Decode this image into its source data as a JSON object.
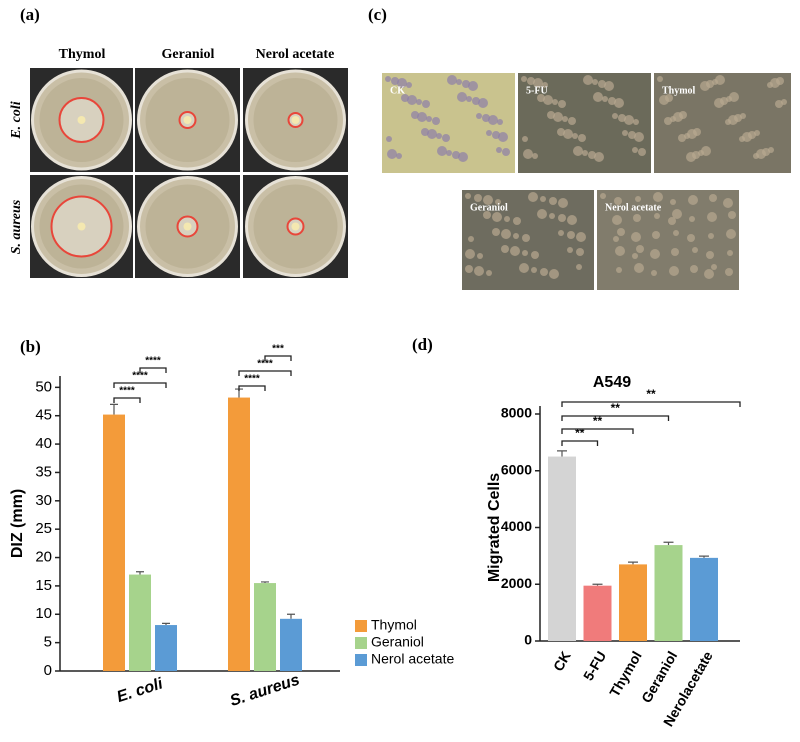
{
  "panel_labels": [
    "(a)",
    "(b)",
    "(c)",
    "(d)"
  ],
  "panel_a": {
    "columns": [
      "Thymol",
      "Geraniol",
      "Nerol acetate"
    ],
    "rows": [
      "E. coli",
      "S. aureus"
    ]
  },
  "panel_c": {
    "images": [
      "CK",
      "5-FU",
      "Thymol",
      "Geraniol",
      "Nerol acetate"
    ]
  },
  "chart_data": [
    {
      "type": "bar",
      "ylabel": "DIZ (mm)",
      "categories": [
        "E. coli",
        "S. aureus"
      ],
      "series": [
        {
          "name": "Thymol",
          "color": "#f39b3a",
          "values": [
            45.2,
            48.2
          ],
          "errors": [
            1.8,
            1.5
          ]
        },
        {
          "name": "Geraniol",
          "color": "#a6d38c",
          "values": [
            17.0,
            15.5
          ],
          "errors": [
            0.5,
            0.2
          ]
        },
        {
          "name": "Nerol acetate",
          "color": "#5b9bd5",
          "values": [
            8.1,
            9.2
          ],
          "errors": [
            0.3,
            0.8
          ]
        }
      ],
      "ylim": [
        0,
        52
      ],
      "yticks": [
        0,
        5,
        10,
        15,
        20,
        25,
        30,
        35,
        40,
        45,
        50
      ],
      "legend": "right",
      "significance": [
        "****",
        "****",
        "****",
        "****",
        "****",
        "***"
      ]
    },
    {
      "type": "bar",
      "title": "A549",
      "ylabel": "Migrated Cells",
      "categories": [
        "CK",
        "5-FU",
        "Thymol",
        "Geraniol",
        "Nerolacetate"
      ],
      "values": [
        6500,
        1950,
        2700,
        3380,
        2930
      ],
      "errors": [
        200,
        50,
        80,
        100,
        60
      ],
      "colors": [
        "#d4d4d4",
        "#f07b7b",
        "#f39b3a",
        "#a6d38c",
        "#5b9bd5"
      ],
      "ylim": [
        0,
        8000
      ],
      "yticks": [
        0,
        2000,
        4000,
        6000,
        8000
      ],
      "significance": [
        "**",
        "**",
        "**",
        "**"
      ]
    }
  ]
}
